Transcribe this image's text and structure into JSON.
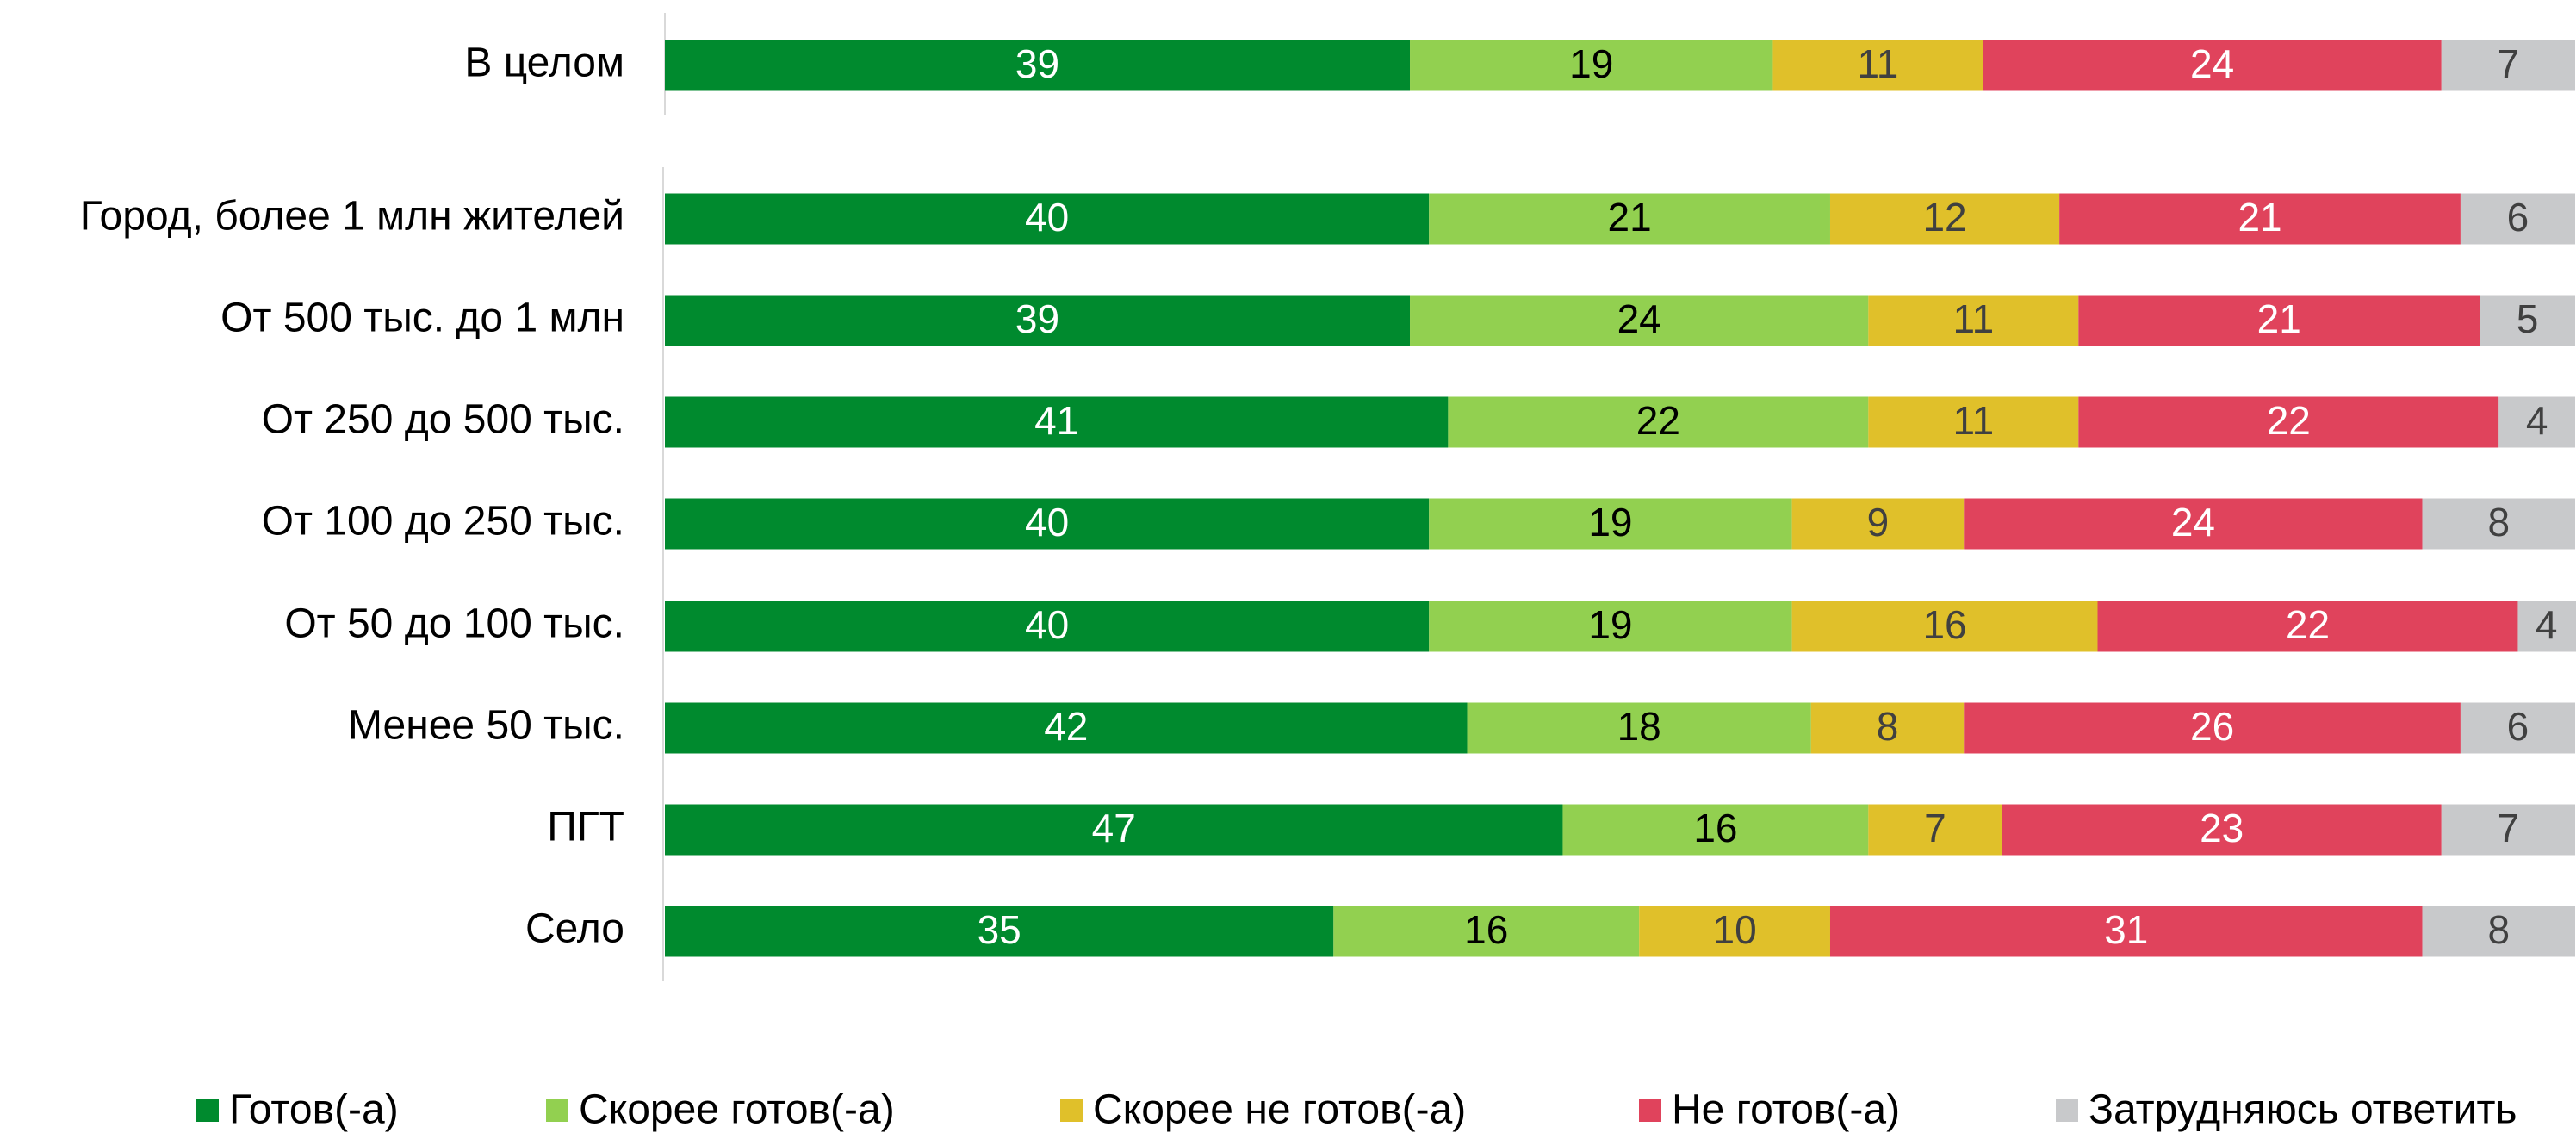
{
  "chart_data": {
    "type": "stacked-bar-horizontal",
    "categories": [
      "В целом",
      "Город, более 1 млн жителей",
      "От 500 тыс. до 1 млн",
      "От 250 до 500 тыс.",
      "От 100 до 250 тыс.",
      "От 50 до 100 тыс.",
      "Менее 50 тыс.",
      "ПГТ",
      "Село"
    ],
    "xlim": [
      0,
      100
    ],
    "series": [
      {
        "name": "Готов(-а)",
        "color": "#008a2e",
        "values": [
          39,
          40,
          39,
          41,
          40,
          40,
          42,
          47,
          35
        ]
      },
      {
        "name": "Скорее готов(-а)",
        "color": "#92d050",
        "values": [
          19,
          21,
          24,
          22,
          19,
          19,
          18,
          16,
          16
        ]
      },
      {
        "name": "Скорее не готов(-а)",
        "color": "#e0c02a",
        "values": [
          11,
          12,
          11,
          11,
          9,
          16,
          8,
          7,
          10
        ]
      },
      {
        "name": "Не готов(-а)",
        "color": "#e0435c",
        "values": [
          24,
          21,
          21,
          22,
          24,
          22,
          26,
          23,
          31
        ]
      },
      {
        "name": "Затрудняюсь ответить",
        "color": "#c8c9cb",
        "values": [
          7,
          6,
          5,
          4,
          8,
          4,
          6,
          7,
          8
        ]
      }
    ],
    "legend": "bottom"
  }
}
